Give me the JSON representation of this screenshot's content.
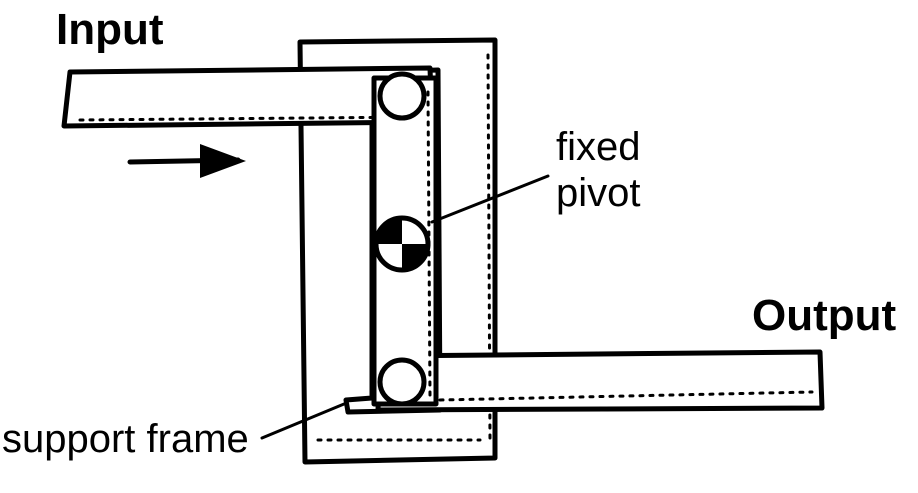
{
  "labels": {
    "input": "Input",
    "output": "Output",
    "fixed_pivot_line1": "fixed",
    "fixed_pivot_line2": "pivot",
    "support_frame": "support frame"
  }
}
